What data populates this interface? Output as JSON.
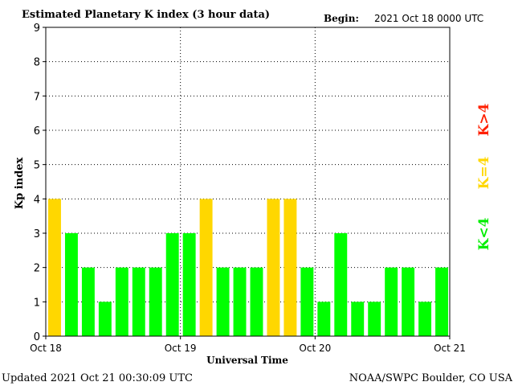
{
  "header": {
    "title": "Estimated Planetary K index (3 hour data)",
    "begin_label": "Begin:",
    "begin_value": "2021 Oct 18 0000 UTC"
  },
  "footer": {
    "updated": "Updated 2021 Oct 21 00:30:09 UTC",
    "source": "NOAA/SWPC Boulder, CO USA"
  },
  "legend": {
    "high": "K>4",
    "equal": "K=4",
    "low": "K<4"
  },
  "colors": {
    "low": "#00ff00",
    "equal": "#ffd700",
    "high": "#ff2000",
    "axis": "#000000",
    "grid": "#000000"
  },
  "chart_data": {
    "type": "bar",
    "title": "Estimated Planetary K index (3 hour data)",
    "xlabel": "Universal Time",
    "ylabel": "Kp index",
    "ylim": [
      0,
      9
    ],
    "yticks": [
      "0",
      "1",
      "2",
      "3",
      "4",
      "5",
      "6",
      "7",
      "8",
      "9"
    ],
    "xticks": [
      "Oct 18",
      "Oct 19",
      "Oct 20",
      "Oct 21"
    ],
    "grid": "dotted",
    "legend_position": "right",
    "values": [
      4,
      3,
      2,
      1,
      2,
      2,
      2,
      3,
      3,
      4,
      2,
      2,
      2,
      4,
      4,
      2,
      1,
      3,
      1,
      1,
      2,
      2,
      1,
      2
    ]
  }
}
